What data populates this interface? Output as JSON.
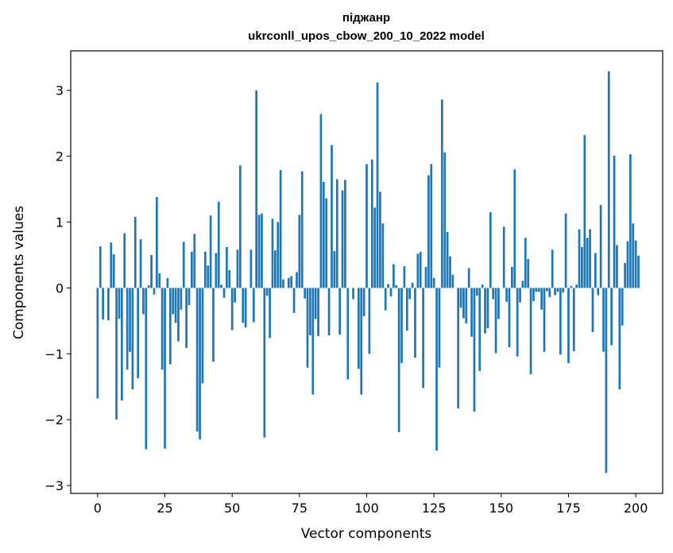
{
  "chart_data": {
    "type": "bar",
    "title": "піджанр",
    "subtitle": "ukrconll_upos_cbow_200_10_2022 model",
    "xlabel": "Vector components",
    "ylabel": "Components values",
    "xlim": [
      -10,
      210
    ],
    "ylim": [
      -3.12,
      3.6
    ],
    "xticks": [
      0,
      25,
      50,
      75,
      100,
      125,
      150,
      175,
      200
    ],
    "yticks": [
      -3,
      -2,
      -1,
      0,
      1,
      2,
      3
    ],
    "ytick_labels": [
      "−3",
      "−2",
      "−1",
      "0",
      "1",
      "2",
      "3"
    ],
    "grid": false,
    "color": "#1f77b4",
    "values": [
      -1.68,
      0.63,
      -0.48,
      0.0,
      -0.49,
      0.69,
      0.51,
      -2.0,
      -0.47,
      -1.71,
      0.83,
      -1.24,
      -0.97,
      -1.54,
      1.08,
      -1.37,
      0.74,
      -0.4,
      -2.45,
      0.04,
      0.5,
      -0.1,
      1.38,
      0.22,
      -1.24,
      -2.44,
      0.15,
      -1.16,
      -0.4,
      -0.53,
      -0.81,
      -0.33,
      0.7,
      -0.91,
      -0.26,
      0.55,
      0.82,
      -2.18,
      -2.3,
      -1.45,
      0.55,
      0.34,
      1.1,
      -1.12,
      0.53,
      1.31,
      0.05,
      -0.15,
      0.62,
      0.27,
      -0.64,
      -0.22,
      0.58,
      1.86,
      -0.53,
      -0.6,
      0.0,
      0.58,
      -0.52,
      3.0,
      1.11,
      1.13,
      -2.27,
      -0.12,
      -0.76,
      1.05,
      0.57,
      1.0,
      1.79,
      0.13,
      0.0,
      0.15,
      0.18,
      -0.38,
      0.24,
      1.11,
      1.77,
      -0.16,
      -1.21,
      -0.72,
      -1.62,
      -0.47,
      -0.73,
      2.64,
      1.61,
      1.36,
      -0.72,
      2.17,
      0.56,
      1.65,
      -0.71,
      1.48,
      1.64,
      -1.39,
      0.0,
      -0.17,
      0.0,
      -1.23,
      -1.62,
      -0.43,
      1.88,
      -1.0,
      1.95,
      1.22,
      3.12,
      1.46,
      0.98,
      -0.34,
      0.06,
      -0.13,
      0.36,
      0.04,
      -2.19,
      -1.14,
      0.33,
      -0.65,
      -0.17,
      0.08,
      -1.06,
      0.52,
      0.55,
      -1.52,
      0.32,
      1.71,
      1.88,
      0.15,
      -2.47,
      -1.21,
      2.86,
      2.06,
      0.85,
      0.48,
      0.2,
      0.0,
      -1.83,
      -0.3,
      -0.46,
      -0.54,
      0.3,
      -0.74,
      -1.88,
      -0.12,
      -1.26,
      0.05,
      -0.69,
      -0.61,
      1.15,
      -0.17,
      -0.99,
      -0.47,
      0.0,
      0.93,
      -0.21,
      -0.9,
      0.32,
      1.8,
      -1.04,
      -0.22,
      0.11,
      0.76,
      0.44,
      -1.31,
      -0.2,
      -0.06,
      -0.06,
      -0.33,
      -0.97,
      -0.05,
      -0.14,
      0.58,
      -0.11,
      -0.06,
      -1.01,
      -0.07,
      1.13,
      -1.14,
      0.03,
      -0.96,
      0.05,
      0.89,
      0.62,
      2.32,
      0.76,
      0.89,
      -0.67,
      0.53,
      -0.11,
      1.26,
      -0.97,
      -2.81,
      3.29,
      -0.87,
      2.01,
      0.65,
      -1.54,
      -0.57,
      0.38,
      0.71,
      2.03,
      0.98,
      0.72,
      0.49
    ]
  }
}
